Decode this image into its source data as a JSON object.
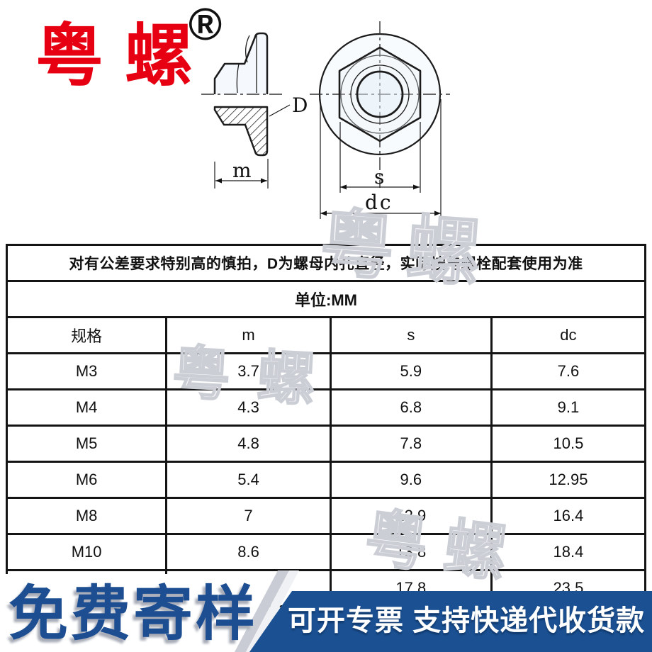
{
  "brand": {
    "logo_text": "粤螺",
    "registered_mark": "®",
    "accent_red": "#e60012"
  },
  "drawing": {
    "labels": {
      "bore": "D",
      "height": "m",
      "across_flats": "s",
      "flange_dia": "dc"
    }
  },
  "watermark": {
    "text": "粤螺"
  },
  "table": {
    "note": "对有公差要求特别高的慎拍，D为螺母内孔直径，实际按与螺栓配套使用为准",
    "unit": "单位:MM",
    "columns": [
      "规格",
      "m",
      "s",
      "dc"
    ],
    "rows": [
      [
        "M3",
        "3.7",
        "5.9",
        "7.6"
      ],
      [
        "M4",
        "4.3",
        "6.8",
        "9.1"
      ],
      [
        "M5",
        "4.8",
        "7.8",
        "10.5"
      ],
      [
        "M6",
        "5.4",
        "9.6",
        "12.95"
      ],
      [
        "M8",
        "7",
        "12.9",
        "16.4"
      ],
      [
        "M10",
        "8.6",
        "13.8",
        "18.4"
      ],
      [
        "",
        "",
        "17.8",
        "23.5"
      ]
    ]
  },
  "banner": {
    "free_sample": "免费寄样",
    "promo": "可开专票 支持快递代收货款",
    "blue": "#1b5193",
    "text_blue": "#1d4e91"
  }
}
